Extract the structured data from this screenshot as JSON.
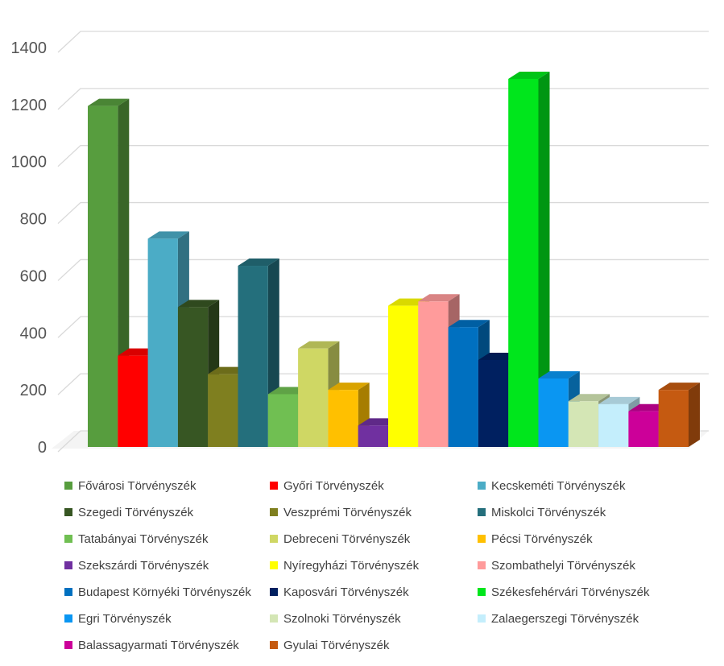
{
  "chart_data": {
    "type": "bar",
    "title": "",
    "xlabel": "",
    "ylabel": "",
    "ylim": [
      0,
      1400
    ],
    "yticks": [
      0,
      200,
      400,
      600,
      800,
      1000,
      1200,
      1400
    ],
    "grid": true,
    "legend_position": "bottom",
    "style": "3d-clustered-column",
    "series": [
      {
        "name": "Fővárosi Törvényszék",
        "value": 1195,
        "color": "#579d3e"
      },
      {
        "name": "Győri Törvényszék",
        "value": 320,
        "color": "#ff0000"
      },
      {
        "name": "Kecskeméti Törvényszék",
        "value": 730,
        "color": "#4bacc6"
      },
      {
        "name": "Szegedi Törvényszék",
        "value": 490,
        "color": "#375623"
      },
      {
        "name": "Veszprémi Törvényszék",
        "value": 255,
        "color": "#7f7f1f"
      },
      {
        "name": "Miskolci Törvényszék",
        "value": 635,
        "color": "#246f7c"
      },
      {
        "name": "Tatabányai Törvényszék",
        "value": 185,
        "color": "#70bf52"
      },
      {
        "name": "Debreceni Törvényszék",
        "value": 345,
        "color": "#cfd764"
      },
      {
        "name": "Pécsi Törvényszék",
        "value": 200,
        "color": "#ffc000"
      },
      {
        "name": "Szekszárdi Törvényszék",
        "value": 75,
        "color": "#7030a0"
      },
      {
        "name": "Nyíregyházi Törvényszék",
        "value": 495,
        "color": "#ffff00"
      },
      {
        "name": "Szombathelyi Törvényszék",
        "value": 510,
        "color": "#ff9b9b"
      },
      {
        "name": "Budapest Környéki Törvényszék",
        "value": 420,
        "color": "#0070c0"
      },
      {
        "name": "Kaposvári Törvényszék",
        "value": 305,
        "color": "#002060"
      },
      {
        "name": "Székesfehérvári Törvényszék",
        "value": 1290,
        "color": "#00e61c"
      },
      {
        "name": "Egri Törvényszék",
        "value": 240,
        "color": "#0a96f2"
      },
      {
        "name": "Szolnoki Törvényszék",
        "value": 160,
        "color": "#d4e6b5"
      },
      {
        "name": "Zalaegerszegi Törvényszék",
        "value": 150,
        "color": "#c4eefc"
      },
      {
        "name": "Balassagyarmati Törvényszék",
        "value": 125,
        "color": "#cc0099"
      },
      {
        "name": "Gyulai Törvényszék",
        "value": 200,
        "color": "#c55a11"
      }
    ]
  }
}
